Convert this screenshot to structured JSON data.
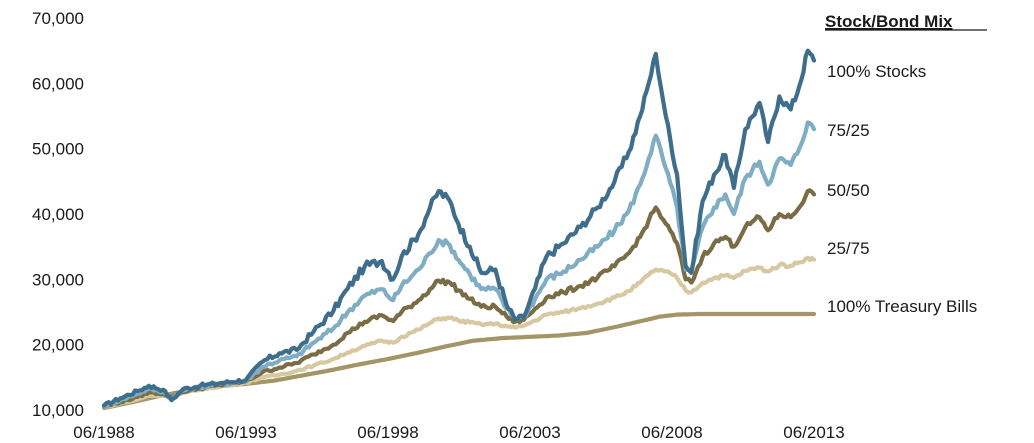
{
  "chart_data": {
    "type": "line",
    "title": "",
    "xlabel": "",
    "ylabel": "",
    "ylim": [
      10000,
      70000
    ],
    "yticks": [
      "10,000",
      "20,000",
      "30,000",
      "40,000",
      "50,000",
      "60,000",
      "70,000"
    ],
    "xlim": [
      1988.42,
      2013.42
    ],
    "xticks": [
      "06/1988",
      "06/1993",
      "06/1998",
      "06/2003",
      "06/2008",
      "06/2013"
    ],
    "grid": false,
    "legend": {
      "title": "Stock/Bond Mix",
      "placement": "right"
    },
    "series": [
      {
        "name": "100% Stocks",
        "color": "#3e6e8c",
        "points": [
          [
            1988.42,
            10700
          ],
          [
            1989.0,
            11800
          ],
          [
            1989.6,
            12900
          ],
          [
            1990.0,
            13700
          ],
          [
            1990.5,
            13100
          ],
          [
            1990.8,
            11500
          ],
          [
            1991.2,
            13200
          ],
          [
            1991.8,
            13700
          ],
          [
            1992.5,
            14100
          ],
          [
            1993.42,
            14600
          ],
          [
            1994.0,
            17400
          ],
          [
            1994.6,
            18700
          ],
          [
            1995.2,
            19200
          ],
          [
            1995.8,
            22000
          ],
          [
            1996.5,
            25200
          ],
          [
            1997.0,
            28600
          ],
          [
            1997.6,
            32000
          ],
          [
            1998.2,
            32800
          ],
          [
            1998.6,
            30000
          ],
          [
            1998.9,
            33500
          ],
          [
            1999.5,
            37000
          ],
          [
            1999.9,
            41000
          ],
          [
            2000.2,
            43500
          ],
          [
            2000.6,
            42000
          ],
          [
            2000.9,
            38500
          ],
          [
            2001.3,
            35000
          ],
          [
            2001.7,
            31000
          ],
          [
            2002.2,
            31500
          ],
          [
            2002.6,
            26000
          ],
          [
            2002.9,
            23800
          ],
          [
            2003.2,
            24200
          ],
          [
            2003.6,
            28600
          ],
          [
            2004.0,
            33500
          ],
          [
            2004.6,
            35500
          ],
          [
            2005.2,
            38000
          ],
          [
            2005.8,
            41000
          ],
          [
            2006.4,
            45000
          ],
          [
            2006.9,
            49500
          ],
          [
            2007.3,
            55000
          ],
          [
            2007.6,
            60000
          ],
          [
            2007.85,
            64500
          ],
          [
            2008.2,
            55000
          ],
          [
            2008.6,
            46000
          ],
          [
            2008.9,
            32000
          ],
          [
            2009.1,
            31000
          ],
          [
            2009.5,
            42000
          ],
          [
            2009.9,
            46000
          ],
          [
            2010.3,
            49000
          ],
          [
            2010.6,
            44000
          ],
          [
            2011.0,
            53000
          ],
          [
            2011.5,
            57000
          ],
          [
            2011.8,
            51000
          ],
          [
            2012.2,
            58000
          ],
          [
            2012.6,
            56000
          ],
          [
            2012.9,
            59500
          ],
          [
            2013.2,
            65000
          ],
          [
            2013.42,
            63500
          ]
        ]
      },
      {
        "name": "75/25",
        "color": "#7fadc4",
        "points": [
          [
            1988.42,
            10600
          ],
          [
            1989.0,
            11500
          ],
          [
            1989.6,
            12500
          ],
          [
            1990.0,
            13200
          ],
          [
            1990.5,
            12800
          ],
          [
            1990.8,
            11700
          ],
          [
            1991.2,
            13000
          ],
          [
            1991.8,
            13500
          ],
          [
            1992.5,
            14000
          ],
          [
            1993.42,
            14500
          ],
          [
            1994.0,
            16600
          ],
          [
            1994.6,
            17600
          ],
          [
            1995.2,
            18200
          ],
          [
            1995.8,
            20300
          ],
          [
            1996.5,
            22500
          ],
          [
            1997.0,
            25000
          ],
          [
            1997.6,
            27500
          ],
          [
            1998.2,
            28500
          ],
          [
            1998.6,
            26800
          ],
          [
            1998.9,
            29000
          ],
          [
            1999.5,
            31500
          ],
          [
            1999.9,
            34000
          ],
          [
            2000.2,
            36000
          ],
          [
            2000.6,
            35200
          ],
          [
            2000.9,
            33000
          ],
          [
            2001.3,
            30800
          ],
          [
            2001.7,
            28500
          ],
          [
            2002.2,
            28500
          ],
          [
            2002.6,
            25500
          ],
          [
            2002.9,
            24000
          ],
          [
            2003.2,
            24300
          ],
          [
            2003.6,
            27000
          ],
          [
            2004.0,
            30000
          ],
          [
            2004.6,
            31200
          ],
          [
            2005.2,
            33000
          ],
          [
            2005.8,
            35000
          ],
          [
            2006.4,
            37500
          ],
          [
            2006.9,
            40500
          ],
          [
            2007.3,
            44500
          ],
          [
            2007.6,
            48500
          ],
          [
            2007.85,
            52000
          ],
          [
            2008.2,
            47000
          ],
          [
            2008.6,
            41000
          ],
          [
            2008.9,
            31500
          ],
          [
            2009.1,
            31000
          ],
          [
            2009.5,
            38000
          ],
          [
            2009.9,
            41000
          ],
          [
            2010.3,
            43000
          ],
          [
            2010.6,
            40000
          ],
          [
            2011.0,
            45500
          ],
          [
            2011.5,
            48000
          ],
          [
            2011.8,
            44500
          ],
          [
            2012.2,
            48500
          ],
          [
            2012.6,
            47500
          ],
          [
            2012.9,
            50000
          ],
          [
            2013.2,
            54000
          ],
          [
            2013.42,
            53000
          ]
        ]
      },
      {
        "name": "50/50",
        "color": "#7a6c45",
        "points": [
          [
            1988.42,
            10500
          ],
          [
            1989.0,
            11200
          ],
          [
            1989.6,
            12000
          ],
          [
            1990.0,
            12700
          ],
          [
            1990.5,
            12500
          ],
          [
            1990.8,
            11900
          ],
          [
            1991.2,
            12800
          ],
          [
            1991.8,
            13300
          ],
          [
            1992.5,
            13800
          ],
          [
            1993.42,
            14400
          ],
          [
            1994.0,
            15800
          ],
          [
            1994.6,
            16500
          ],
          [
            1995.2,
            17200
          ],
          [
            1995.8,
            18500
          ],
          [
            1996.5,
            20000
          ],
          [
            1997.0,
            21800
          ],
          [
            1997.6,
            23500
          ],
          [
            1998.2,
            24500
          ],
          [
            1998.6,
            23600
          ],
          [
            1998.9,
            25000
          ],
          [
            1999.5,
            26800
          ],
          [
            1999.9,
            28500
          ],
          [
            2000.2,
            29800
          ],
          [
            2000.6,
            29500
          ],
          [
            2000.9,
            28300
          ],
          [
            2001.3,
            27000
          ],
          [
            2001.7,
            25800
          ],
          [
            2002.2,
            25800
          ],
          [
            2002.6,
            24300
          ],
          [
            2002.9,
            23500
          ],
          [
            2003.2,
            23800
          ],
          [
            2003.6,
            25500
          ],
          [
            2004.0,
            27200
          ],
          [
            2004.6,
            28000
          ],
          [
            2005.2,
            29000
          ],
          [
            2005.8,
            30300
          ],
          [
            2006.4,
            32000
          ],
          [
            2006.9,
            34000
          ],
          [
            2007.3,
            36500
          ],
          [
            2007.6,
            39000
          ],
          [
            2007.85,
            41000
          ],
          [
            2008.2,
            38500
          ],
          [
            2008.6,
            35500
          ],
          [
            2008.9,
            30000
          ],
          [
            2009.1,
            29500
          ],
          [
            2009.5,
            33500
          ],
          [
            2009.9,
            35500
          ],
          [
            2010.3,
            36500
          ],
          [
            2010.6,
            35000
          ],
          [
            2011.0,
            38000
          ],
          [
            2011.5,
            39500
          ],
          [
            2011.8,
            37500
          ],
          [
            2012.2,
            40000
          ],
          [
            2012.6,
            39500
          ],
          [
            2012.9,
            41000
          ],
          [
            2013.2,
            43500
          ],
          [
            2013.42,
            43000
          ]
        ]
      },
      {
        "name": "25/75",
        "color": "#d6c9a1",
        "points": [
          [
            1988.42,
            10400
          ],
          [
            1989.0,
            11000
          ],
          [
            1989.6,
            11600
          ],
          [
            1990.0,
            12200
          ],
          [
            1990.5,
            12200
          ],
          [
            1990.8,
            12000
          ],
          [
            1991.2,
            12600
          ],
          [
            1991.8,
            13100
          ],
          [
            1992.5,
            13600
          ],
          [
            1993.42,
            14200
          ],
          [
            1994.0,
            15000
          ],
          [
            1994.6,
            15400
          ],
          [
            1995.2,
            16000
          ],
          [
            1995.8,
            16800
          ],
          [
            1996.5,
            17800
          ],
          [
            1997.0,
            18800
          ],
          [
            1997.6,
            19800
          ],
          [
            1998.2,
            20600
          ],
          [
            1998.6,
            20300
          ],
          [
            1998.9,
            21200
          ],
          [
            1999.5,
            22300
          ],
          [
            1999.9,
            23300
          ],
          [
            2000.2,
            24000
          ],
          [
            2000.6,
            24100
          ],
          [
            2000.9,
            23700
          ],
          [
            2001.3,
            23400
          ],
          [
            2001.7,
            23100
          ],
          [
            2002.2,
            23200
          ],
          [
            2002.6,
            22800
          ],
          [
            2002.9,
            22600
          ],
          [
            2003.2,
            22900
          ],
          [
            2003.6,
            23700
          ],
          [
            2004.0,
            24600
          ],
          [
            2004.6,
            25000
          ],
          [
            2005.2,
            25600
          ],
          [
            2005.8,
            26300
          ],
          [
            2006.4,
            27200
          ],
          [
            2006.9,
            28200
          ],
          [
            2007.3,
            29500
          ],
          [
            2007.6,
            30700
          ],
          [
            2007.85,
            31500
          ],
          [
            2008.2,
            31200
          ],
          [
            2008.6,
            30200
          ],
          [
            2008.9,
            28300
          ],
          [
            2009.1,
            28000
          ],
          [
            2009.5,
            29500
          ],
          [
            2009.9,
            30200
          ],
          [
            2010.3,
            30600
          ],
          [
            2010.6,
            30200
          ],
          [
            2011.0,
            31300
          ],
          [
            2011.5,
            31800
          ],
          [
            2011.8,
            31200
          ],
          [
            2012.2,
            32200
          ],
          [
            2012.6,
            32100
          ],
          [
            2012.9,
            32600
          ],
          [
            2013.2,
            33300
          ],
          [
            2013.42,
            33000
          ]
        ]
      },
      {
        "name": "100% Treasury Bills",
        "color": "#a39566",
        "points": [
          [
            1988.42,
            10300
          ],
          [
            1989.42,
            11200
          ],
          [
            1990.42,
            12200
          ],
          [
            1991.42,
            13000
          ],
          [
            1992.42,
            13600
          ],
          [
            1993.42,
            14000
          ],
          [
            1994.42,
            14500
          ],
          [
            1995.42,
            15300
          ],
          [
            1996.42,
            16100
          ],
          [
            1997.42,
            17000
          ],
          [
            1998.42,
            17800
          ],
          [
            1999.42,
            18700
          ],
          [
            2000.42,
            19700
          ],
          [
            2001.42,
            20600
          ],
          [
            2002.42,
            21000
          ],
          [
            2003.42,
            21200
          ],
          [
            2004.42,
            21400
          ],
          [
            2005.42,
            21800
          ],
          [
            2006.42,
            22700
          ],
          [
            2007.42,
            23700
          ],
          [
            2008.0,
            24300
          ],
          [
            2008.6,
            24600
          ],
          [
            2009.42,
            24700
          ],
          [
            2010.42,
            24700
          ],
          [
            2011.42,
            24700
          ],
          [
            2012.42,
            24700
          ],
          [
            2013.42,
            24700
          ]
        ]
      }
    ]
  }
}
